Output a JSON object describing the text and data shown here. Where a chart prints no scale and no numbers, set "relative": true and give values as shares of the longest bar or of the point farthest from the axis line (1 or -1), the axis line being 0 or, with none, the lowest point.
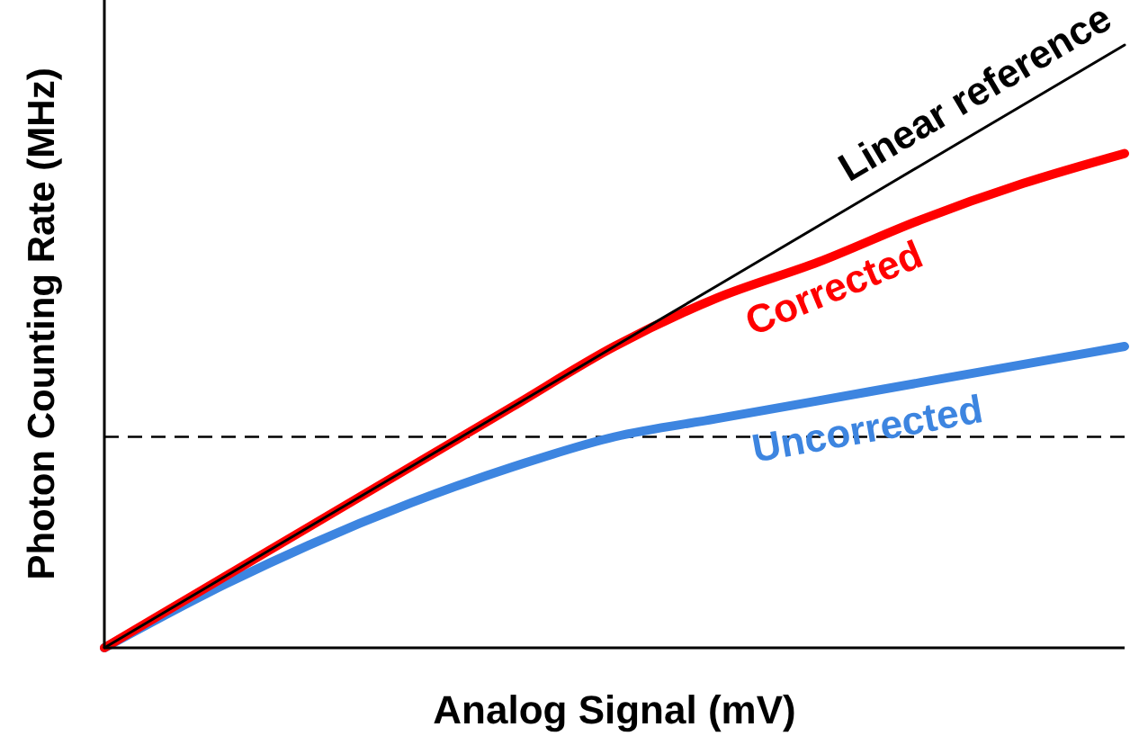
{
  "chart_data": {
    "type": "line",
    "xlabel": "Analog Signal (mV)",
    "ylabel": "Photon Counting Rate (MHz)",
    "relative": true,
    "categories": [
      null,
      null,
      null,
      null,
      null,
      null,
      null,
      null,
      null,
      null,
      null
    ],
    "series": [
      {
        "name": "Linear reference",
        "color": "#000000",
        "values": [
          0,
          0.1,
          0.2,
          0.3,
          0.4,
          0.5,
          0.6,
          0.7,
          0.8,
          0.9,
          1.0
        ]
      },
      {
        "name": "Corrected",
        "color": "#ff0000",
        "values": [
          0,
          0.1,
          0.2,
          0.3,
          0.4,
          0.5,
          0.58,
          0.64,
          0.71,
          0.77,
          0.82
        ]
      },
      {
        "name": "Uncorrected",
        "color": "#3d85e0",
        "values": [
          0,
          0.09,
          0.17,
          0.24,
          0.3,
          0.35,
          0.38,
          0.41,
          0.44,
          0.47,
          0.5
        ]
      }
    ],
    "ref_lines": [
      {
        "axis": "y",
        "value": 0.35,
        "label": null,
        "color": "#000000",
        "line_style": "dashed"
      }
    ]
  }
}
